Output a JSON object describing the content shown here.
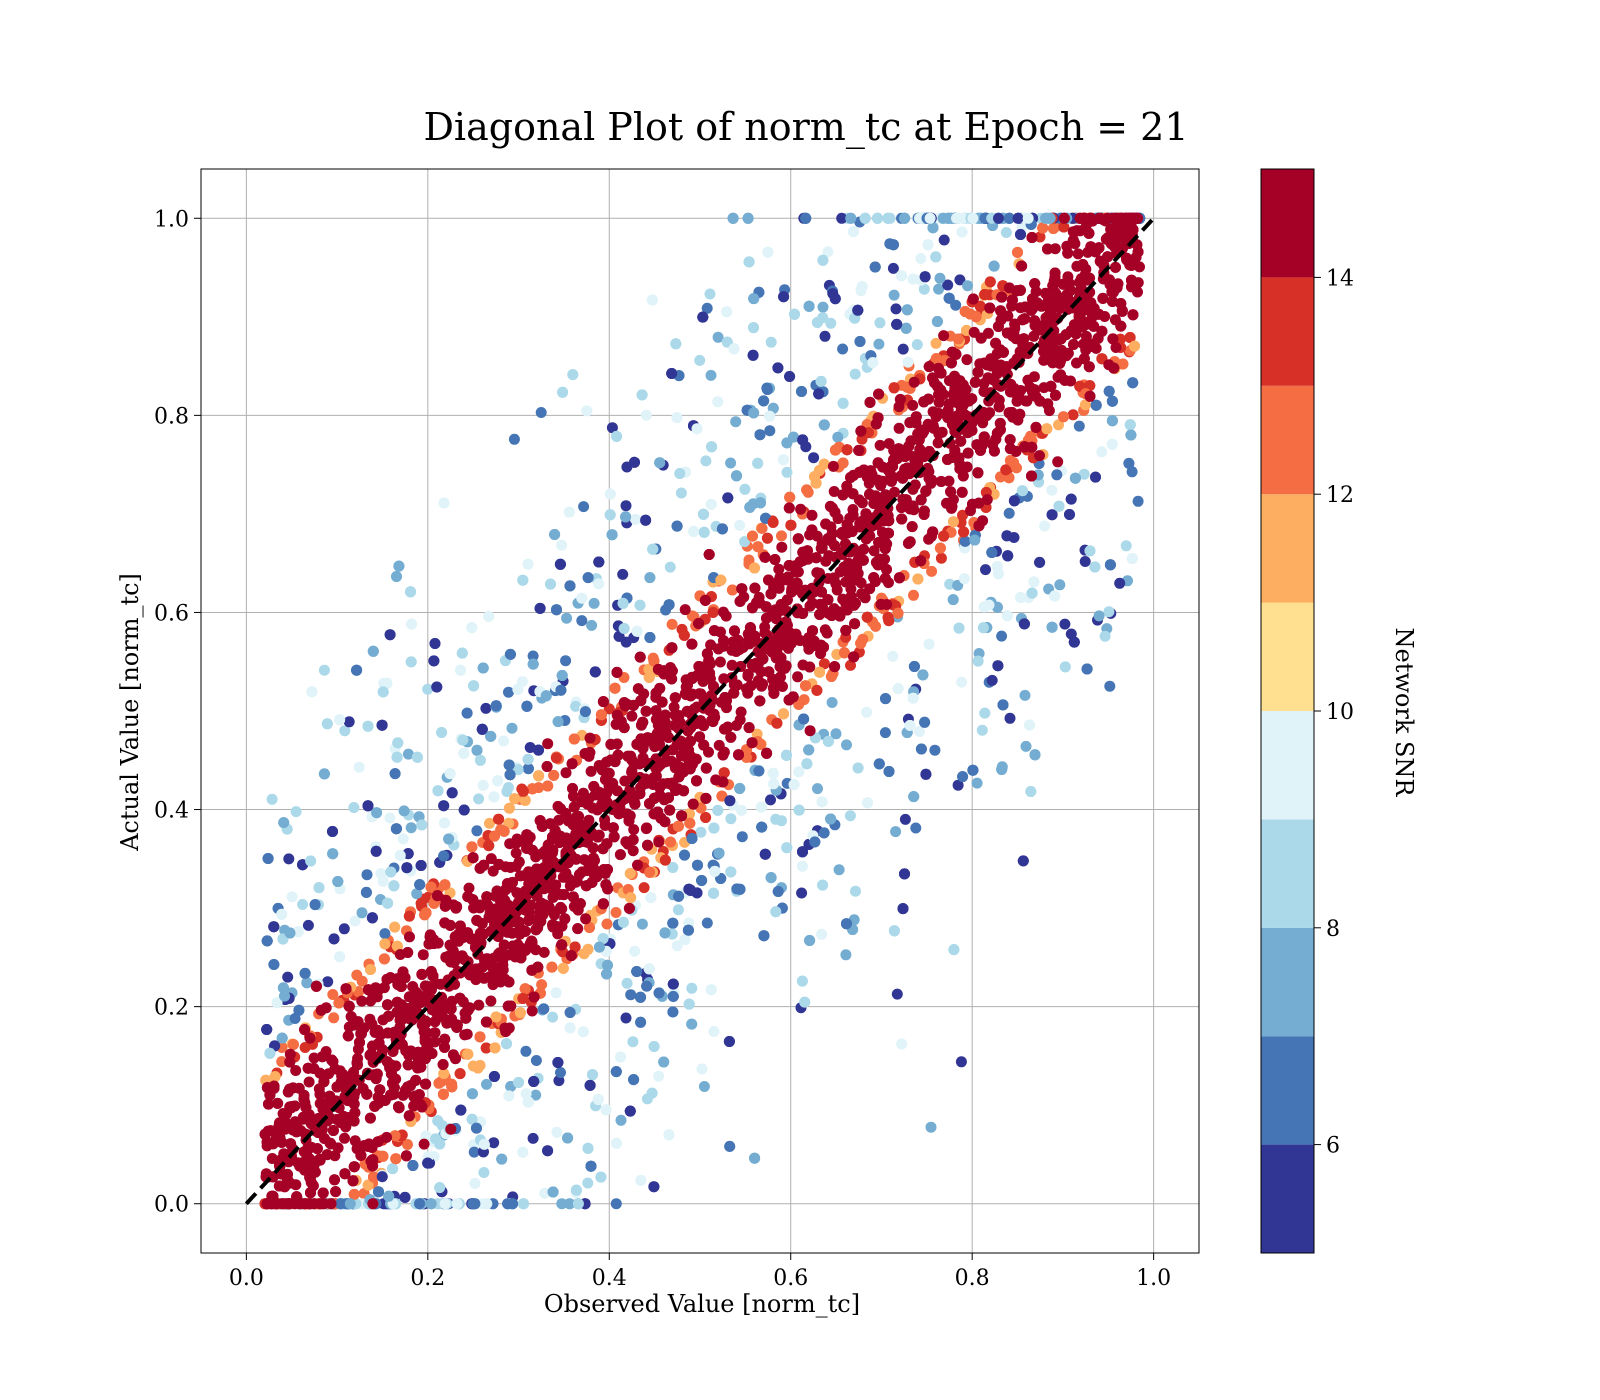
{
  "chart_data": {
    "type": "scatter",
    "title": "Diagonal Plot of norm_tc at Epoch = 21",
    "xlabel": "Observed Value [norm_tc]",
    "ylabel": "Actual Value [norm_tc]",
    "xlim": [
      -0.05,
      1.05
    ],
    "ylim": [
      -0.05,
      1.05
    ],
    "xticks": [
      "0.0",
      "0.2",
      "0.4",
      "0.6",
      "0.8",
      "1.0"
    ],
    "yticks": [
      "0.0",
      "0.2",
      "0.4",
      "0.6",
      "0.8",
      "1.0"
    ],
    "grid": true,
    "reference_line": {
      "style": "dashed",
      "color": "#000000",
      "from": [
        0,
        0
      ],
      "to": [
        1,
        1
      ]
    },
    "colorbar": {
      "label": "Network SNR",
      "range": [
        5,
        15
      ],
      "tick_values": [
        6,
        8,
        10,
        12,
        14
      ],
      "tick_labels": [
        "6",
        "8",
        "10",
        "12",
        "14"
      ],
      "colors": [
        "#313695",
        "#4575b4",
        "#74add1",
        "#abd9e9",
        "#e0f3f8",
        "#fee090",
        "#fdae61",
        "#f46d43",
        "#d73027",
        "#a50026"
      ]
    }
  }
}
